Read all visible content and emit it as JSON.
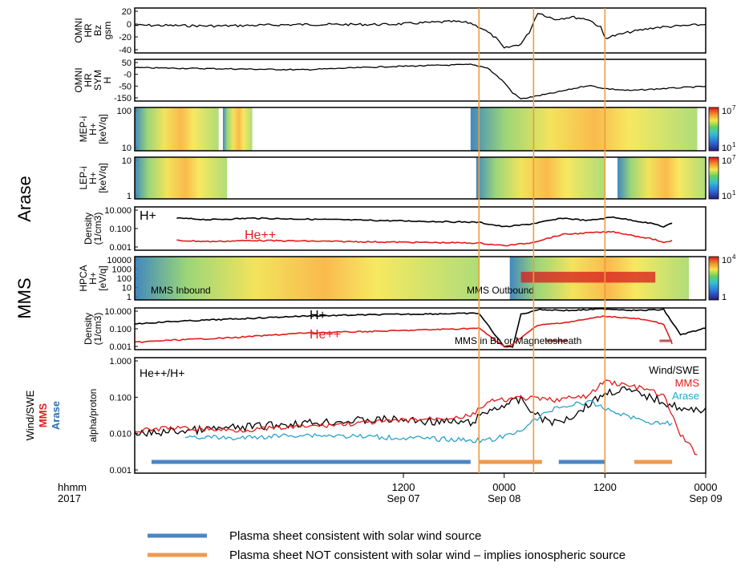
{
  "chart_data": {
    "type": "line",
    "time_axis": {
      "range": [
        "2017-09-06T04:00",
        "2017-09-09T00:00"
      ],
      "ticks": [
        {
          "hhmm": "1200",
          "date": "Sep 07",
          "time": "2017-09-07T12:00"
        },
        {
          "hhmm": "0000",
          "date": "Sep 08",
          "time": "2017-09-08T00:00"
        },
        {
          "hhmm": "1200",
          "date": "",
          "time": "2017-09-08T12:00"
        },
        {
          "hhmm": "0000",
          "date": "Sep 09",
          "time": "2017-09-09T00:00"
        }
      ],
      "label_hhmm": "hhmm",
      "label_year": "2017"
    },
    "vertical_markers": [
      "2017-09-07T21:00",
      "2017-09-08T03:30",
      "2017-09-08T12:00"
    ],
    "group_labels": {
      "arase": "Arase",
      "mms": "MMS"
    },
    "panels": [
      {
        "id": "omni-bz",
        "ylabel": [
          "OMNI",
          "HR",
          "Bz",
          "gsm"
        ],
        "ylim": [
          -40,
          20
        ],
        "ticks": [
          "20",
          "0",
          "-20",
          "-40"
        ],
        "series": [
          {
            "color": "#000000",
            "x": [
              "2017-09-06T04:00",
              "2017-09-06T14:00",
              "2017-09-07T00:00",
              "2017-09-07T10:00",
              "2017-09-07T18:00",
              "2017-09-07T20:00",
              "2017-09-07T21:30",
              "2017-09-07T23:00",
              "2017-09-08T00:00",
              "2017-09-08T02:00",
              "2017-09-08T03:00",
              "2017-09-08T04:00",
              "2017-09-08T06:00",
              "2017-09-08T08:00",
              "2017-09-08T10:00",
              "2017-09-08T11:30",
              "2017-09-08T12:00",
              "2017-09-08T15:00",
              "2017-09-08T18:00",
              "2017-09-08T21:00",
              "2017-09-09T00:00"
            ],
            "values": [
              -3,
              -4,
              -2,
              -2,
              2,
              0,
              -8,
              -20,
              -34,
              -28,
              -12,
              14,
              5,
              8,
              5,
              -6,
              -20,
              -12,
              -6,
              -4,
              -2
            ]
          }
        ]
      },
      {
        "id": "omni-sym",
        "ylabel": [
          "OMNI",
          "HR",
          "SYM",
          "H"
        ],
        "ylim": [
          -150,
          50
        ],
        "ticks": [
          "50",
          "-0",
          "-50",
          "-150"
        ],
        "series": [
          {
            "color": "#000000",
            "x": [
              "2017-09-06T04:00",
              "2017-09-06T14:00",
              "2017-09-07T00:00",
              "2017-09-07T10:00",
              "2017-09-07T20:00",
              "2017-09-07T22:00",
              "2017-09-08T00:00",
              "2017-09-08T01:00",
              "2017-09-08T02:00",
              "2017-09-08T06:00",
              "2017-09-08T10:00",
              "2017-09-08T12:00",
              "2017-09-08T15:00",
              "2017-09-08T19:00",
              "2017-09-09T00:00"
            ],
            "values": [
              10,
              5,
              0,
              15,
              25,
              10,
              -60,
              -110,
              -140,
              -110,
              -75,
              -90,
              -100,
              -90,
              -80
            ]
          }
        ]
      },
      {
        "id": "mep-i",
        "type": "heatmap",
        "ylabel": [
          "MEP-i",
          "H+",
          "[keV/q]"
        ],
        "ylim": [
          10,
          200
        ],
        "ticks": [
          "100",
          "10"
        ],
        "colorbar": {
          "max": "10",
          "max_exp": "7",
          "min": "10",
          "min_exp": "1"
        }
      },
      {
        "id": "lep-i",
        "type": "heatmap",
        "ylabel": [
          "LEP-i",
          "H+",
          "[keV/q]"
        ],
        "ylim": [
          1,
          30
        ],
        "ticks": [
          "10",
          "1"
        ],
        "colorbar": {
          "max": "10",
          "max_exp": "7",
          "min": "10",
          "min_exp": "1"
        }
      },
      {
        "id": "arase-density",
        "ylabel": [
          "Density",
          "(1/cm3)"
        ],
        "ylim": [
          0.0003,
          30
        ],
        "scale": "log",
        "ticks": [
          "10.000",
          "0.100",
          "0.001"
        ],
        "series": [
          {
            "name": "H+",
            "color": "#000000",
            "x": [
              "2017-09-06T09:00",
              "2017-09-06T13:00",
              "2017-09-06T18:00",
              "2017-09-07T21:00",
              "2017-09-08T00:00",
              "2017-09-08T03:00",
              "2017-09-08T07:00",
              "2017-09-08T10:00",
              "2017-09-08T13:00",
              "2017-09-08T18:00",
              "2017-09-08T19:00",
              "2017-09-08T20:00"
            ],
            "values": [
              1.5,
              1.0,
              1.5,
              0.5,
              0.15,
              0.3,
              1.5,
              0.8,
              2.0,
              0.3,
              0.15,
              0.4
            ]
          },
          {
            "name": "He++",
            "color": "#e21b1b",
            "x": [
              "2017-09-06T09:00",
              "2017-09-06T13:00",
              "2017-09-06T18:00",
              "2017-09-07T21:00",
              "2017-09-08T00:00",
              "2017-09-08T03:00",
              "2017-09-08T07:00",
              "2017-09-08T10:00",
              "2017-09-08T13:00",
              "2017-09-08T18:00",
              "2017-09-08T19:00",
              "2017-09-08T20:00"
            ],
            "values": [
              0.004,
              0.003,
              0.004,
              0.002,
              0.001,
              0.002,
              0.02,
              0.03,
              0.04,
              0.005,
              0.002,
              0.004
            ]
          }
        ]
      },
      {
        "id": "hpca",
        "type": "heatmap",
        "ylabel": [
          "HPCA",
          "H+",
          "[eV/q]"
        ],
        "ylim": [
          1,
          30000
        ],
        "ticks": [
          "10000",
          "1000",
          "100",
          "10",
          "1"
        ],
        "colorbar": {
          "max": "10",
          "max_exp": "4",
          "min": "1"
        },
        "annotations": [
          "MMS Inbound",
          "MMS Outbound"
        ]
      },
      {
        "id": "mms-density",
        "ylabel": [
          "Density",
          "(1/cm3)"
        ],
        "ylim": [
          0.0005,
          15
        ],
        "scale": "log",
        "ticks": [
          "10.000",
          "0.100",
          "0.001"
        ],
        "annotation": "MMS in BL or Magnetosheath",
        "series": [
          {
            "name": "H+",
            "color": "#000000",
            "x": [
              "2017-09-06T04:00",
              "2017-09-06T08:00",
              "2017-09-06T16:00",
              "2017-09-07T00:00",
              "2017-09-07T10:00",
              "2017-09-07T21:00",
              "2017-09-08T00:00",
              "2017-09-08T01:00",
              "2017-09-08T02:00",
              "2017-09-08T04:00",
              "2017-09-08T08:00",
              "2017-09-08T12:00",
              "2017-09-08T16:00",
              "2017-09-08T19:00",
              "2017-09-08T21:00",
              "2017-09-09T00:00"
            ],
            "values": [
              0.3,
              0.5,
              1,
              2,
              3,
              4,
              0.001,
              0.001,
              3,
              10,
              8,
              12,
              8,
              10,
              0.02,
              0.1
            ]
          },
          {
            "name": "He++",
            "color": "#e21b1b",
            "x": [
              "2017-09-06T04:00",
              "2017-09-06T08:00",
              "2017-09-06T16:00",
              "2017-09-07T00:00",
              "2017-09-07T10:00",
              "2017-09-07T21:00",
              "2017-09-08T00:00",
              "2017-09-08T01:00",
              "2017-09-08T02:00",
              "2017-09-08T04:00",
              "2017-09-08T08:00",
              "2017-09-08T12:00",
              "2017-09-08T16:00",
              "2017-09-08T19:00",
              "2017-09-08T20:00"
            ],
            "values": [
              0.003,
              0.005,
              0.01,
              0.03,
              0.05,
              0.1,
              0.001,
              0.002,
              0.01,
              0.2,
              0.5,
              2,
              1,
              0.3,
              0.002
            ]
          }
        ]
      },
      {
        "id": "alpha-proton",
        "ylabel": [
          "alpha/proton"
        ],
        "outer_labels": [
          {
            "text": "Wind/SWE",
            "color": "#000000"
          },
          {
            "text": "MMS",
            "color": "#e21b1b"
          },
          {
            "text": "Arase",
            "color": "#2f6db3"
          }
        ],
        "ylim": [
          0.001,
          1.0
        ],
        "scale": "log",
        "ticks": [
          "1.000",
          "0.100",
          "0.010",
          "0.001"
        ],
        "title": "He++/H+",
        "series": [
          {
            "name": "Wind/SWE",
            "color": "#000000",
            "x": [
              "2017-09-06T04:00",
              "2017-09-06T08:00",
              "2017-09-06T16:00",
              "2017-09-07T00:00",
              "2017-09-07T10:00",
              "2017-09-07T20:00",
              "2017-09-07T22:00",
              "2017-09-08T00:00",
              "2017-09-08T02:00",
              "2017-09-08T04:00",
              "2017-09-08T06:00",
              "2017-09-08T08:00",
              "2017-09-08T10:00",
              "2017-09-08T12:00",
              "2017-09-08T14:00",
              "2017-09-08T17:00",
              "2017-09-08T20:00",
              "2017-09-08T22:00",
              "2017-09-09T00:00"
            ],
            "values": [
              0.01,
              0.012,
              0.015,
              0.02,
              0.025,
              0.02,
              0.04,
              0.06,
              0.08,
              0.03,
              0.02,
              0.03,
              0.06,
              0.12,
              0.15,
              0.1,
              0.06,
              0.04,
              0.05
            ]
          },
          {
            "name": "MMS",
            "color": "#e21b1b",
            "x": [
              "2017-09-06T04:00",
              "2017-09-06T08:00",
              "2017-09-06T16:00",
              "2017-09-07T00:00",
              "2017-09-07T10:00",
              "2017-09-07T20:00",
              "2017-09-07T22:00",
              "2017-09-08T00:00",
              "2017-09-08T02:00",
              "2017-09-08T06:00",
              "2017-09-08T10:00",
              "2017-09-08T12:00",
              "2017-09-08T14:00",
              "2017-09-08T17:00",
              "2017-09-08T19:00",
              "2017-09-08T21:00",
              "2017-09-08T23:00"
            ],
            "values": [
              0.012,
              0.015,
              0.013,
              0.016,
              0.022,
              0.03,
              0.07,
              0.08,
              0.09,
              0.08,
              0.1,
              0.25,
              0.2,
              0.15,
              0.1,
              0.01,
              0.003
            ]
          },
          {
            "name": "Arase",
            "color": "#29a3c8",
            "x": [
              "2017-09-06T10:00",
              "2017-09-06T16:00",
              "2017-09-07T00:00",
              "2017-09-07T22:00",
              "2017-09-08T01:00",
              "2017-09-08T06:00",
              "2017-09-08T10:00",
              "2017-09-08T13:00",
              "2017-09-08T16:00",
              "2017-09-08T18:00",
              "2017-09-08T20:00"
            ],
            "values": [
              0.009,
              0.008,
              0.01,
              0.007,
              0.01,
              0.05,
              0.07,
              0.04,
              0.025,
              0.02,
              0.02
            ]
          }
        ],
        "intervals": [
          {
            "start": "2017-09-06T06:00",
            "end": "2017-09-07T20:00",
            "kind": "solar"
          },
          {
            "start": "2017-09-07T21:00",
            "end": "2017-09-08T04:30",
            "kind": "ionospheric"
          },
          {
            "start": "2017-09-08T06:30",
            "end": "2017-09-08T12:00",
            "kind": "solar"
          },
          {
            "start": "2017-09-08T15:30",
            "end": "2017-09-08T20:00",
            "kind": "ionospheric"
          }
        ]
      }
    ],
    "legend": [
      {
        "label": "Plasma sheet consistent with solar wind source",
        "color": "#4a86c5",
        "kind": "solar"
      },
      {
        "label": "Plasma sheet NOT consistent with solar wind – implies ionospheric source",
        "color": "#ef9a4c",
        "kind": "ionospheric"
      }
    ]
  }
}
